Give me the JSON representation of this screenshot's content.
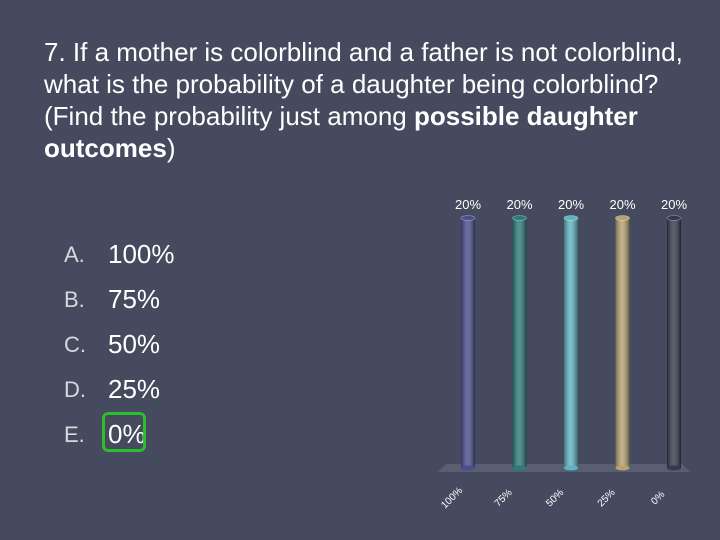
{
  "slide": {
    "question_part1": "7.  If a mother is colorblind and a father is not colorblind, what is the probability of a daughter being colorblind?  (Find the probability just among ",
    "question_bold": "possible daughter outcomes",
    "question_part2": ")",
    "options": [
      {
        "letter": "A.",
        "text": "100%"
      },
      {
        "letter": "B.",
        "text": "75%"
      },
      {
        "letter": "C.",
        "text": "50%"
      },
      {
        "letter": "D.",
        "text": "25%"
      },
      {
        "letter": "E.",
        "text": "0%"
      }
    ],
    "correct_option_index": 4,
    "correct_highlight_color": "#2bbf2b"
  },
  "chart_data": {
    "type": "bar",
    "categories": [
      "100%",
      "75%",
      "50%",
      "25%",
      "0%"
    ],
    "values": [
      20,
      20,
      20,
      20,
      20
    ],
    "value_labels": [
      "20%",
      "20%",
      "20%",
      "20%",
      "20%"
    ],
    "ylim": [
      0,
      20
    ],
    "grid": false,
    "colors": [
      "#4a4f8c",
      "#2e7c78",
      "#5fb3c2",
      "#b9a272",
      "#373a4e"
    ]
  }
}
